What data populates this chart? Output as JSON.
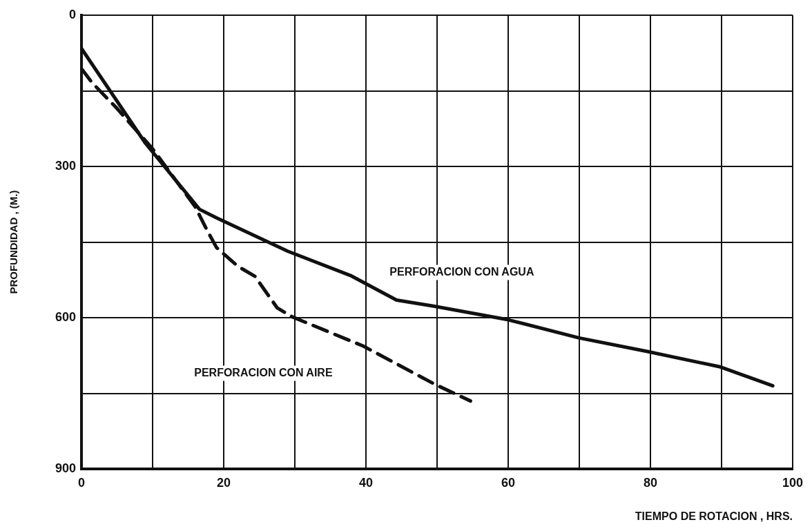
{
  "chart_data": {
    "type": "line",
    "xlabel": "TIEMPO DE ROTACION , HRS.",
    "ylabel": "PROFUNDIDAD , (M.)",
    "xlim": [
      0,
      100
    ],
    "xticks": [
      0,
      {
        "value": 10,
        "label": null
      },
      20,
      {
        "value": 30,
        "label": null
      },
      40,
      {
        "value": 50,
        "label": null
      },
      60,
      {
        "value": 70,
        "label": null
      },
      80,
      {
        "value": 90,
        "label": null
      },
      100
    ],
    "ylim": [
      900,
      0
    ],
    "yticks": [
      0,
      {
        "value": 150,
        "label": null
      },
      300,
      {
        "value": 450,
        "label": null
      },
      600,
      {
        "value": 750,
        "label": null
      },
      900
    ],
    "grid": true,
    "legend": false,
    "marker": "none",
    "series": [
      {
        "name": "PERFORACION CON AGUA",
        "color": "#111111",
        "line_style": "solid",
        "x": [
          0,
          9,
          16.6,
          19,
          29,
          37.8,
          44.3,
          49.5,
          60,
          70,
          79.6,
          89.7,
          97.2
        ],
        "values": [
          66,
          254,
          385,
          402,
          468,
          516,
          565,
          577,
          604,
          640,
          667,
          697,
          735
        ]
      },
      {
        "name": "PERFORACION CON AIRE",
        "color": "#111111",
        "line_style": "dashed",
        "x": [
          0,
          1.5,
          5,
          10,
          16,
          17.6,
          19,
          22,
          24.4,
          27.5,
          29.6,
          39.6,
          49.7,
          54.7
        ],
        "values": [
          106,
          134,
          185,
          265,
          380,
          425,
          461,
          498,
          518,
          580,
          598,
          656,
          732,
          765
        ]
      }
    ]
  }
}
